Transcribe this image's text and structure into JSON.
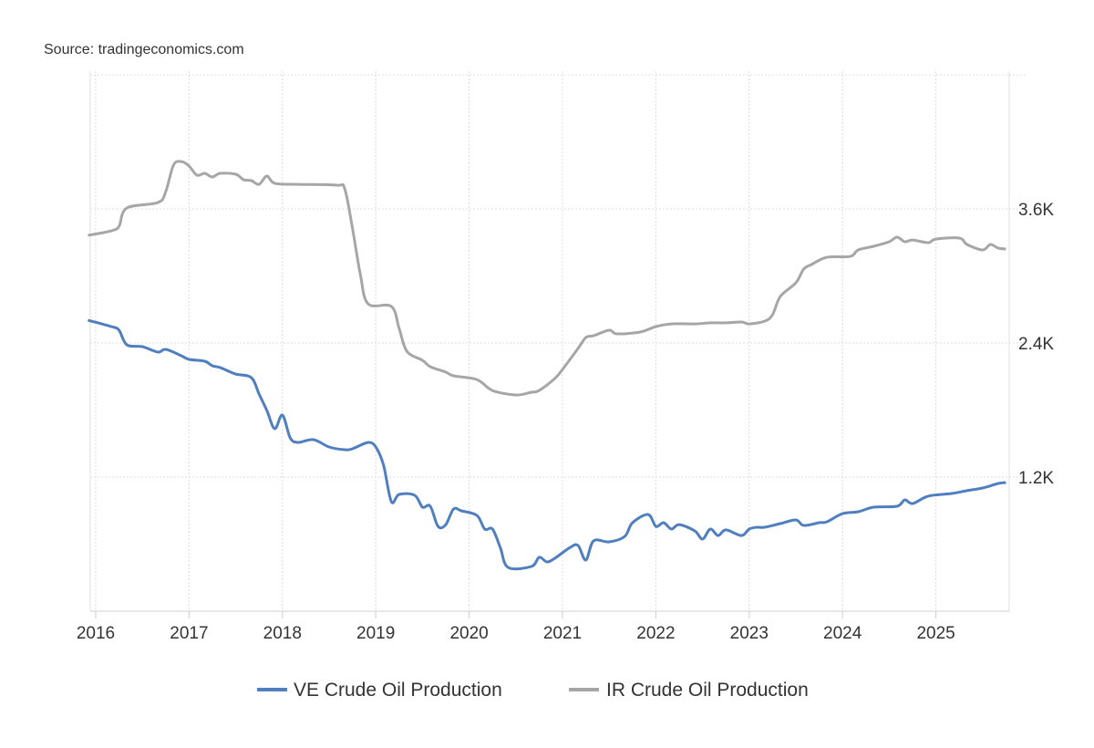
{
  "source": "Source: tradingeconomics.com",
  "chart_data": {
    "type": "line",
    "title": "",
    "xlabel": "",
    "ylabel": "",
    "x_axis": {
      "type": "date",
      "range": [
        "2015-12",
        "2025-10"
      ],
      "tick_labels": [
        "2016",
        "2017",
        "2018",
        "2019",
        "2020",
        "2021",
        "2022",
        "2023",
        "2024",
        "2025"
      ]
    },
    "y_axis": {
      "position": "right",
      "ylim": [
        0,
        4800
      ],
      "ticks": [
        1200,
        2400,
        3600
      ],
      "tick_labels": [
        "1.2K",
        "2.4K",
        "3.6K"
      ]
    },
    "grid": true,
    "legend": "bottom",
    "series": [
      {
        "name": "VE Crude Oil Production",
        "color": "#4f7fbf",
        "points": [
          [
            "2015-12",
            2604
          ],
          [
            "2016-03",
            2547
          ],
          [
            "2016-04",
            2514
          ],
          [
            "2016-05",
            2384
          ],
          [
            "2016-07",
            2367
          ],
          [
            "2016-09",
            2318
          ],
          [
            "2016-10",
            2343
          ],
          [
            "2016-12",
            2286
          ],
          [
            "2017-01",
            2253
          ],
          [
            "2017-03",
            2237
          ],
          [
            "2017-04",
            2196
          ],
          [
            "2017-05",
            2180
          ],
          [
            "2017-07",
            2122
          ],
          [
            "2017-09",
            2090
          ],
          [
            "2017-10",
            1943
          ],
          [
            "2017-11",
            1796
          ],
          [
            "2017-12",
            1633
          ],
          [
            "2018-01",
            1755
          ],
          [
            "2018-02",
            1551
          ],
          [
            "2018-03",
            1510
          ],
          [
            "2018-05",
            1535
          ],
          [
            "2018-07",
            1469
          ],
          [
            "2018-09",
            1445
          ],
          [
            "2018-10",
            1453
          ],
          [
            "2018-12",
            1510
          ],
          [
            "2019-01",
            1469
          ],
          [
            "2019-02",
            1306
          ],
          [
            "2019-03",
            980
          ],
          [
            "2019-04",
            1045
          ],
          [
            "2019-06",
            1037
          ],
          [
            "2019-07",
            931
          ],
          [
            "2019-08",
            940
          ],
          [
            "2019-09",
            759
          ],
          [
            "2019-10",
            775
          ],
          [
            "2019-11",
            914
          ],
          [
            "2019-12",
            898
          ],
          [
            "2020-02",
            857
          ],
          [
            "2020-03",
            735
          ],
          [
            "2020-04",
            735
          ],
          [
            "2020-05",
            571
          ],
          [
            "2020-06",
            392
          ],
          [
            "2020-09",
            400
          ],
          [
            "2020-10",
            482
          ],
          [
            "2020-11",
            441
          ],
          [
            "2020-12",
            473
          ],
          [
            "2021-02",
            571
          ],
          [
            "2021-03",
            588
          ],
          [
            "2021-04",
            457
          ],
          [
            "2021-05",
            629
          ],
          [
            "2021-07",
            620
          ],
          [
            "2021-09",
            669
          ],
          [
            "2021-10",
            792
          ],
          [
            "2021-12",
            865
          ],
          [
            "2022-01",
            759
          ],
          [
            "2022-02",
            792
          ],
          [
            "2022-03",
            735
          ],
          [
            "2022-04",
            775
          ],
          [
            "2022-06",
            718
          ],
          [
            "2022-07",
            645
          ],
          [
            "2022-08",
            735
          ],
          [
            "2022-09",
            677
          ],
          [
            "2022-10",
            727
          ],
          [
            "2022-12",
            677
          ],
          [
            "2023-01",
            735
          ],
          [
            "2023-02",
            751
          ],
          [
            "2023-03",
            751
          ],
          [
            "2023-05",
            784
          ],
          [
            "2023-07",
            816
          ],
          [
            "2023-08",
            767
          ],
          [
            "2023-10",
            792
          ],
          [
            "2023-11",
            800
          ],
          [
            "2024-01",
            873
          ],
          [
            "2024-03",
            890
          ],
          [
            "2024-05",
            931
          ],
          [
            "2024-08",
            939
          ],
          [
            "2024-09",
            996
          ],
          [
            "2024-10",
            963
          ],
          [
            "2024-12",
            1029
          ],
          [
            "2025-03",
            1053
          ],
          [
            "2025-05",
            1078
          ],
          [
            "2025-07",
            1102
          ],
          [
            "2025-09",
            1143
          ],
          [
            "2025-10",
            1151
          ]
        ]
      },
      {
        "name": "IR Crude Oil Production",
        "color": "#a6a6a6",
        "points": [
          [
            "2015-12",
            3363
          ],
          [
            "2016-03",
            3404
          ],
          [
            "2016-04",
            3445
          ],
          [
            "2016-05",
            3608
          ],
          [
            "2016-09",
            3657
          ],
          [
            "2016-10",
            3755
          ],
          [
            "2016-11",
            3992
          ],
          [
            "2016-12",
            4024
          ],
          [
            "2017-01",
            3984
          ],
          [
            "2017-02",
            3902
          ],
          [
            "2017-03",
            3918
          ],
          [
            "2017-04",
            3886
          ],
          [
            "2017-05",
            3918
          ],
          [
            "2017-07",
            3910
          ],
          [
            "2017-08",
            3861
          ],
          [
            "2017-09",
            3853
          ],
          [
            "2017-10",
            3820
          ],
          [
            "2017-11",
            3894
          ],
          [
            "2017-12",
            3829
          ],
          [
            "2018-03",
            3820
          ],
          [
            "2018-08",
            3812
          ],
          [
            "2018-09",
            3780
          ],
          [
            "2018-10",
            3428
          ],
          [
            "2018-11",
            3020
          ],
          [
            "2018-12",
            2751
          ],
          [
            "2019-03",
            2727
          ],
          [
            "2019-04",
            2531
          ],
          [
            "2019-05",
            2326
          ],
          [
            "2019-07",
            2245
          ],
          [
            "2019-08",
            2188
          ],
          [
            "2019-10",
            2139
          ],
          [
            "2019-11",
            2106
          ],
          [
            "2020-02",
            2073
          ],
          [
            "2020-04",
            1975
          ],
          [
            "2020-07",
            1935
          ],
          [
            "2020-09",
            1959
          ],
          [
            "2020-10",
            1975
          ],
          [
            "2020-12",
            2082
          ],
          [
            "2021-01",
            2163
          ],
          [
            "2021-03",
            2351
          ],
          [
            "2021-04",
            2449
          ],
          [
            "2021-05",
            2465
          ],
          [
            "2021-07",
            2514
          ],
          [
            "2021-08",
            2482
          ],
          [
            "2021-11",
            2498
          ],
          [
            "2022-01",
            2547
          ],
          [
            "2022-03",
            2571
          ],
          [
            "2022-06",
            2571
          ],
          [
            "2022-08",
            2580
          ],
          [
            "2022-10",
            2580
          ],
          [
            "2022-12",
            2588
          ],
          [
            "2023-01",
            2571
          ],
          [
            "2023-03",
            2596
          ],
          [
            "2023-04",
            2653
          ],
          [
            "2023-05",
            2816
          ],
          [
            "2023-07",
            2939
          ],
          [
            "2023-08",
            3061
          ],
          [
            "2023-09",
            3102
          ],
          [
            "2023-11",
            3167
          ],
          [
            "2024-02",
            3175
          ],
          [
            "2024-03",
            3233
          ],
          [
            "2024-05",
            3265
          ],
          [
            "2024-07",
            3306
          ],
          [
            "2024-08",
            3347
          ],
          [
            "2024-09",
            3306
          ],
          [
            "2024-10",
            3322
          ],
          [
            "2024-12",
            3298
          ],
          [
            "2025-01",
            3330
          ],
          [
            "2025-04",
            3339
          ],
          [
            "2025-05",
            3282
          ],
          [
            "2025-07",
            3233
          ],
          [
            "2025-08",
            3282
          ],
          [
            "2025-09",
            3249
          ],
          [
            "2025-10",
            3241
          ]
        ]
      }
    ]
  }
}
